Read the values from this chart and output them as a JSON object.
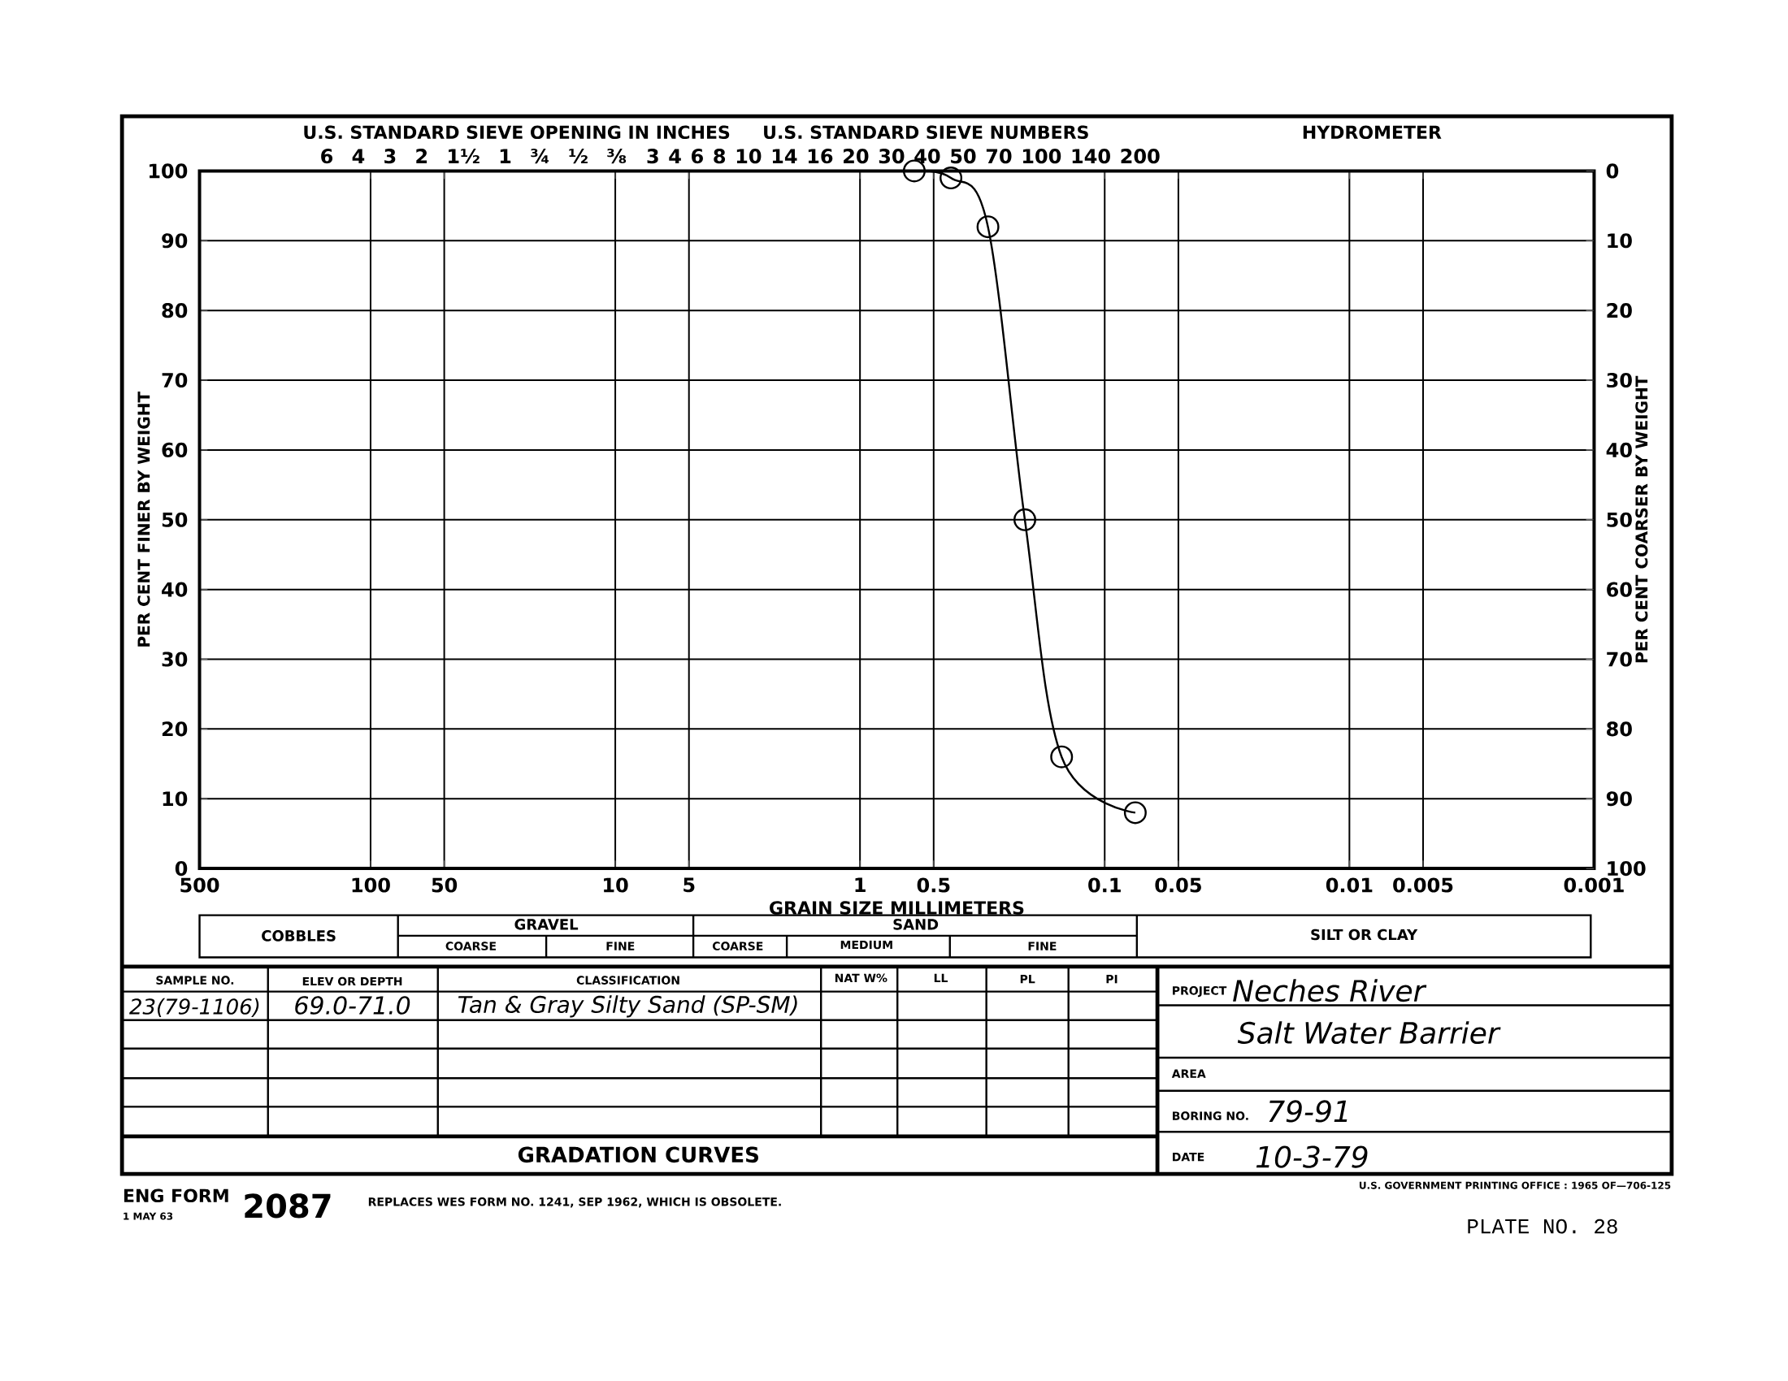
{
  "chart_data": {
    "type": "line",
    "title": "GRADATION CURVES",
    "xlabel": "GRAIN SIZE MILLIMETERS",
    "ylabel": "PER CENT FINER BY WEIGHT",
    "y2label": "PER CENT COARSER BY WEIGHT",
    "log": "x",
    "grid": true,
    "marker": "circle",
    "line_style": "solid",
    "x": [
      0.6,
      0.425,
      0.3,
      0.212,
      0.15,
      0.075
    ],
    "series": [
      {
        "color": "#000000",
        "values": [
          100,
          99,
          92,
          50,
          16,
          8
        ]
      }
    ],
    "xlim": [
      500,
      0.001
    ],
    "xticks": [
      500,
      100,
      50,
      10,
      5,
      1,
      0.5,
      0.1,
      0.05,
      0.01,
      0.005,
      0.001
    ],
    "ylim": [
      0,
      100
    ],
    "yticks": [
      0,
      10,
      20,
      30,
      40,
      50,
      60,
      70,
      80,
      90,
      100
    ],
    "y2lim": [
      100,
      0
    ],
    "y2ticks": [
      0,
      10,
      20,
      30,
      40,
      50,
      60,
      70,
      80,
      90,
      100
    ],
    "annotations": [
      "U.S. STANDARD SIEVE OPENING IN INCHES",
      "U.S. STANDARD SIEVE NUMBERS",
      "HYDROMETER",
      "COBBLES",
      "GRAVEL",
      "COARSE",
      "FINE",
      "SAND",
      "COARSE",
      "MEDIUM",
      "FINE",
      "SILT OR CLAY",
      "SAMPLE NO.",
      "ELEV OR DEPTH",
      "CLASSIFICATION",
      "NAT W%",
      "LL",
      "PL",
      "PI",
      "23(79-1106)",
      "69.0-71.0",
      "Tan & Gray Silty Sand (SP-SM)",
      "PROJECT",
      "Neches River",
      "Salt Water Barrier",
      "AREA",
      "BORING NO.",
      "79-91",
      "DATE",
      "10-3-79",
      "ENG FORM",
      "1 MAY 63",
      "2087",
      "REPLACES WES FORM NO. 1241, SEP 1962, WHICH IS OBSOLETE.",
      "U.S. GOVERNMENT PRINTING OFFICE : 1965 OF—706-125",
      "PLATE NO. 28",
      "6 4 3 2 1½ 1 ¾ ½ ⅜",
      "3 4 6 8 10 14 16 20 30 40 50 70 100 140 200"
    ]
  }
}
